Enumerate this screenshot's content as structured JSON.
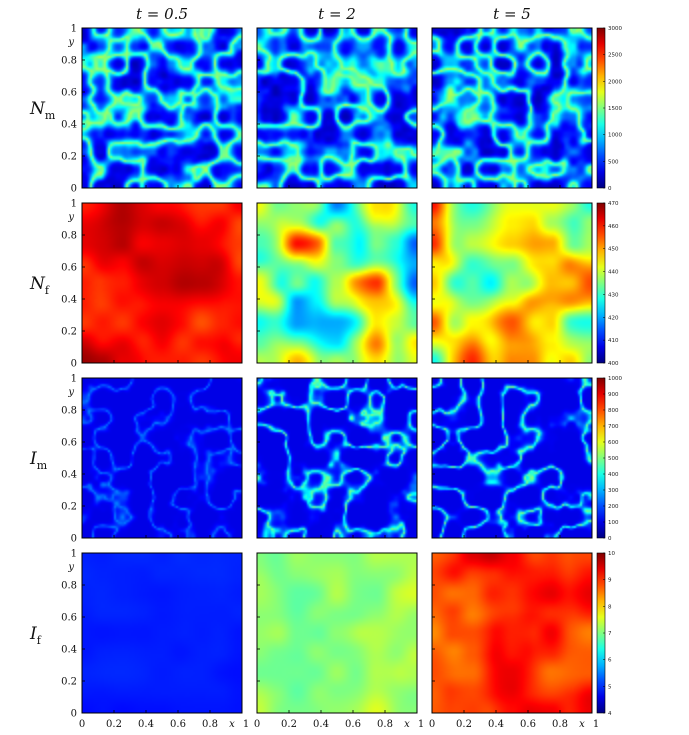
{
  "chart_data": {
    "type": "heatmap",
    "column_titles": [
      "t = 0.5",
      "t = 2",
      "t = 5"
    ],
    "xlabel": "x",
    "ylabel": "y",
    "x_ticks": [
      "0",
      "0.2",
      "0.4",
      "0.6",
      "0.8",
      "1"
    ],
    "y_ticks": [
      "0",
      "0.2",
      "0.4",
      "0.6",
      "0.8",
      "1"
    ],
    "xlim": [
      0,
      1
    ],
    "ylim": [
      0,
      1
    ],
    "colormap": "jet",
    "rows": [
      {
        "label": "N",
        "subscript": "m",
        "colorbar": {
          "range": [
            0,
            3000
          ],
          "ticks": [
            "0",
            "500",
            "1000",
            "1500",
            "2000",
            "2500",
            "3000"
          ]
        },
        "panels": [
          {
            "time": "t = 0.5",
            "pattern": "cells",
            "level_range": [
              0.05,
              0.55
            ]
          },
          {
            "time": "t = 2",
            "pattern": "cells",
            "level_range": [
              0.05,
              0.55
            ]
          },
          {
            "time": "t = 5",
            "pattern": "cells",
            "level_range": [
              0.05,
              0.55
            ]
          }
        ]
      },
      {
        "label": "N",
        "subscript": "f",
        "colorbar": {
          "range": [
            400,
            470
          ],
          "ticks": [
            "400",
            "410",
            "420",
            "430",
            "440",
            "450",
            "460",
            "470"
          ]
        },
        "panels": [
          {
            "time": "t = 0.5",
            "pattern": "smooth",
            "level_range": [
              0.78,
              0.98
            ]
          },
          {
            "time": "t = 2",
            "pattern": "smooth",
            "level_range": [
              0.12,
              0.9
            ]
          },
          {
            "time": "t = 5",
            "pattern": "smooth",
            "level_range": [
              0.3,
              0.9
            ]
          }
        ]
      },
      {
        "label": "I",
        "subscript": "m",
        "colorbar": {
          "range": [
            0,
            1000
          ],
          "ticks": [
            "0",
            "100",
            "200",
            "300",
            "400",
            "500",
            "600",
            "700",
            "800",
            "900",
            "1000"
          ]
        },
        "panels": [
          {
            "time": "t = 0.5",
            "pattern": "filaments",
            "level_range": [
              0.1,
              0.25
            ]
          },
          {
            "time": "t = 2",
            "pattern": "filaments",
            "level_range": [
              0.1,
              0.5
            ]
          },
          {
            "time": "t = 5",
            "pattern": "filaments",
            "level_range": [
              0.1,
              0.5
            ]
          }
        ]
      },
      {
        "label": "I",
        "subscript": "f",
        "colorbar": {
          "range": [
            4,
            10
          ],
          "ticks": [
            "4",
            "5",
            "6",
            "7",
            "8",
            "9",
            "10"
          ]
        },
        "panels": [
          {
            "time": "t = 0.5",
            "pattern": "smooth",
            "level_range": [
              0.13,
              0.17
            ]
          },
          {
            "time": "t = 2",
            "pattern": "smooth",
            "level_range": [
              0.45,
              0.62
            ]
          },
          {
            "time": "t = 5",
            "pattern": "smooth",
            "level_range": [
              0.72,
              0.96
            ]
          }
        ]
      }
    ]
  }
}
